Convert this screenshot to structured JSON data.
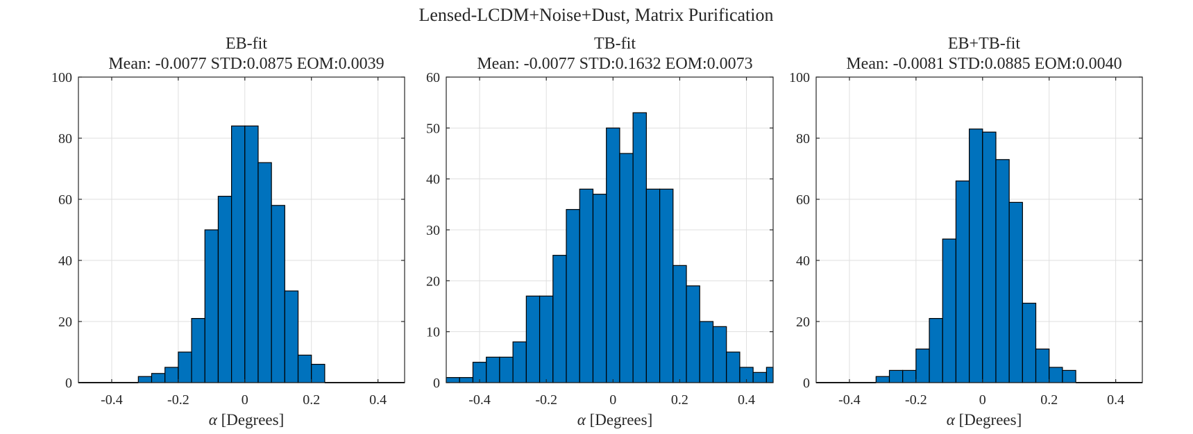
{
  "colors": {
    "bar_fill": "#0072BD",
    "bar_edge": "#000000",
    "grid": "#dfdfdf",
    "axis": "#262626"
  },
  "figure_title": "Lensed-LCDM+Noise+Dust, Matrix Purification",
  "chart_data": [
    {
      "type": "bar",
      "title": "EB-fit",
      "subtitle": "Mean: -0.0077 STD:0.0875 EOM:0.0039",
      "xlabel_symbol": "α",
      "xlabel_text": " [Degrees]",
      "ylabel": "",
      "xlim": [
        -0.5,
        0.48
      ],
      "ylim": [
        0,
        100
      ],
      "xticks": [
        -0.4,
        -0.2,
        0,
        0.2,
        0.4
      ],
      "xtick_labels": [
        "-0.4",
        "-0.2",
        "0",
        "0.2",
        "0.4"
      ],
      "yticks": [
        0,
        20,
        40,
        60,
        80,
        100
      ],
      "ytick_labels": [
        "0",
        "20",
        "40",
        "60",
        "80",
        "100"
      ],
      "grid": true,
      "bin_edges": [
        -0.32,
        -0.28,
        -0.24,
        -0.2,
        -0.16,
        -0.12,
        -0.08,
        -0.04,
        0,
        0.04,
        0.08,
        0.12,
        0.16,
        0.2,
        0.24
      ],
      "values": [
        2,
        3,
        5,
        10,
        21,
        50,
        61,
        84,
        84,
        72,
        58,
        30,
        9,
        6,
        4
      ]
    },
    {
      "type": "bar",
      "title": "TB-fit",
      "subtitle": "Mean: -0.0077 STD:0.1632 EOM:0.0073",
      "xlabel_symbol": "α",
      "xlabel_text": " [Degrees]",
      "ylabel": "",
      "xlim": [
        -0.5,
        0.48
      ],
      "ylim": [
        0,
        60
      ],
      "xticks": [
        -0.4,
        -0.2,
        0,
        0.2,
        0.4
      ],
      "xtick_labels": [
        "-0.4",
        "-0.2",
        "0",
        "0.2",
        "0.4"
      ],
      "yticks": [
        0,
        10,
        20,
        30,
        40,
        50,
        60
      ],
      "ytick_labels": [
        "0",
        "10",
        "20",
        "30",
        "40",
        "50",
        "60"
      ],
      "grid": true,
      "bin_edges": [
        -0.5,
        -0.46,
        -0.42,
        -0.38,
        -0.34,
        -0.3,
        -0.26,
        -0.22,
        -0.18,
        -0.14,
        -0.1,
        -0.06,
        -0.02,
        0.02,
        0.06,
        0.1,
        0.14,
        0.18,
        0.22,
        0.26,
        0.3,
        0.34,
        0.38,
        0.42,
        0.46,
        0.48
      ],
      "values": [
        1,
        1,
        4,
        5,
        5,
        8,
        17,
        17,
        25,
        34,
        38,
        37,
        50,
        45,
        53,
        38,
        38,
        23,
        19,
        12,
        11,
        6,
        3,
        2,
        3,
        3
      ]
    },
    {
      "type": "bar",
      "title": "EB+TB-fit",
      "subtitle": "Mean: -0.0081 STD:0.0885 EOM:0.0040",
      "xlabel_symbol": "α",
      "xlabel_text": " [Degrees]",
      "ylabel": "",
      "xlim": [
        -0.5,
        0.48
      ],
      "ylim": [
        0,
        100
      ],
      "xticks": [
        -0.4,
        -0.2,
        0,
        0.2,
        0.4
      ],
      "xtick_labels": [
        "-0.4",
        "-0.2",
        "0",
        "0.2",
        "0.4"
      ],
      "yticks": [
        0,
        20,
        40,
        60,
        80,
        100
      ],
      "ytick_labels": [
        "0",
        "20",
        "40",
        "60",
        "80",
        "100"
      ],
      "grid": true,
      "bin_edges": [
        -0.32,
        -0.28,
        -0.24,
        -0.2,
        -0.16,
        -0.12,
        -0.08,
        -0.04,
        0,
        0.04,
        0.08,
        0.12,
        0.16,
        0.2,
        0.24,
        0.28
      ],
      "values": [
        2,
        4,
        4,
        11,
        21,
        47,
        66,
        83,
        82,
        73,
        59,
        26,
        11,
        5,
        4,
        1
      ]
    }
  ]
}
